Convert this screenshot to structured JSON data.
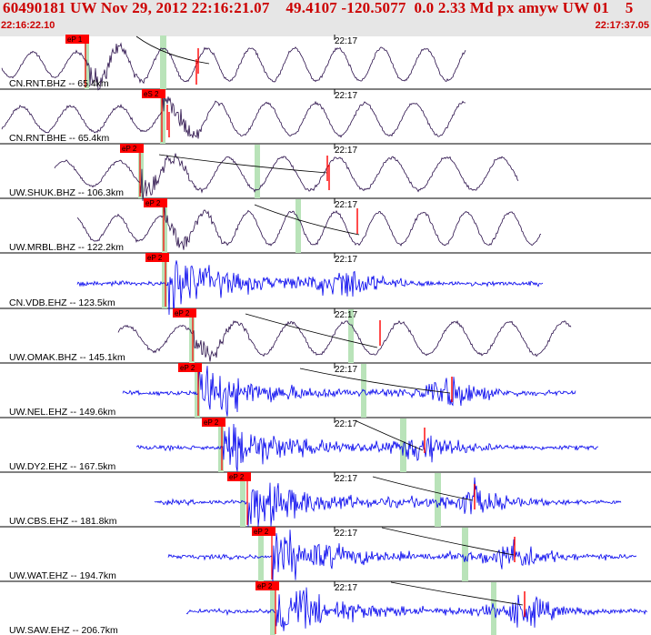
{
  "header": {
    "title": "60490181 UW Nov 29, 2012 22:16:21.07    49.4107 -120.5077  0.0 2.33 Md px amyw UW 01    5",
    "start_time": "22:16:22.10",
    "end_time": "22:17:37.05"
  },
  "time_mark_label": "22:17",
  "colors": {
    "header_text": "#cc0000",
    "header_bg": "#e6e6e6",
    "long_period_trace": "#2a0f4a",
    "short_period_trace": "#0000ee",
    "pick": "#ff0000",
    "window_shading": "#b9e3b9",
    "coda_curve": "#000000"
  },
  "traces": [
    {
      "station": "CN.RNT.BHZ -- 65.4km",
      "pick_label": "eP 1",
      "type": "long"
    },
    {
      "station": "CN.RNT.BHE -- 65.4km",
      "pick_label": "eS 2",
      "type": "long"
    },
    {
      "station": "UW.SHUK.BHZ -- 106.3km",
      "pick_label": "eP 2",
      "type": "long"
    },
    {
      "station": "UW.MRBL.BHZ -- 122.2km",
      "pick_label": "eP 2",
      "type": "long"
    },
    {
      "station": "CN.VDB.EHZ -- 123.5km",
      "pick_label": "eP 2",
      "type": "short"
    },
    {
      "station": "UW.OMAK.BHZ -- 145.1km",
      "pick_label": "eP 2",
      "type": "long"
    },
    {
      "station": "UW.NEL.EHZ -- 149.6km",
      "pick_label": "eP 2",
      "type": "short"
    },
    {
      "station": "UW.DY2.EHZ -- 167.5km",
      "pick_label": "eP 2",
      "type": "short"
    },
    {
      "station": "UW.CBS.EHZ -- 181.8km",
      "pick_label": "eP 2",
      "type": "short"
    },
    {
      "station": "UW.WAT.EHZ -- 194.7km",
      "pick_label": "eP 2",
      "type": "short"
    },
    {
      "station": "UW.SAW.EHZ -- 206.7km",
      "pick_label": "eP 2",
      "type": "short"
    }
  ]
}
